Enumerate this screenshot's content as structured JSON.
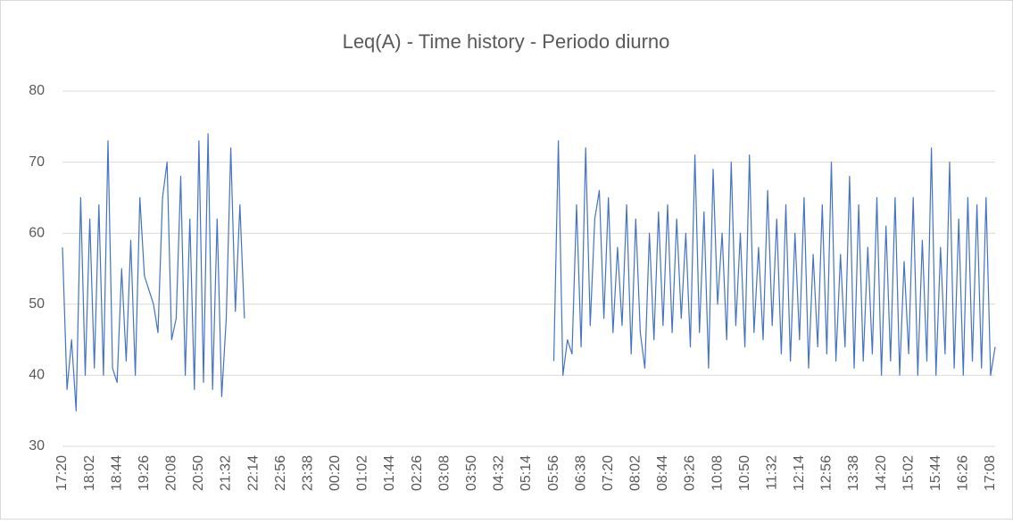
{
  "chart_data": {
    "type": "line",
    "title": "Leq(A) - Time history - Periodo diurno",
    "categories": [
      "17:20",
      null,
      null,
      null,
      null,
      null,
      "18:02",
      null,
      null,
      null,
      null,
      null,
      "18:44",
      null,
      null,
      null,
      null,
      null,
      "19:26",
      null,
      null,
      null,
      null,
      null,
      "20:08",
      null,
      null,
      null,
      null,
      null,
      "20:50",
      null,
      null,
      null,
      null,
      null,
      "21:32",
      null,
      null,
      null,
      null,
      null,
      "22:14",
      null,
      null,
      null,
      null,
      null,
      "22:56",
      null,
      null,
      null,
      null,
      null,
      "23:38",
      null,
      null,
      null,
      null,
      null,
      "00:20",
      null,
      null,
      null,
      null,
      null,
      "01:02",
      null,
      null,
      null,
      null,
      null,
      "01:44",
      null,
      null,
      null,
      null,
      null,
      "02:26",
      null,
      null,
      null,
      null,
      null,
      "03:08",
      null,
      null,
      null,
      null,
      null,
      "03:50",
      null,
      null,
      null,
      null,
      null,
      "04:32",
      null,
      null,
      null,
      null,
      null,
      "05:14",
      null,
      null,
      null,
      null,
      null,
      "05:56",
      null,
      null,
      null,
      null,
      null,
      "06:38",
      null,
      null,
      null,
      null,
      null,
      "07:20",
      null,
      null,
      null,
      null,
      null,
      "08:02",
      null,
      null,
      null,
      null,
      null,
      "08:44",
      null,
      null,
      null,
      null,
      null,
      "09:26",
      null,
      null,
      null,
      null,
      null,
      "10:08",
      null,
      null,
      null,
      null,
      null,
      "10:50",
      null,
      null,
      null,
      null,
      null,
      "11:32",
      null,
      null,
      null,
      null,
      null,
      "12:14",
      null,
      null,
      null,
      null,
      null,
      "12:56",
      null,
      null,
      null,
      null,
      null,
      "13:38",
      null,
      null,
      null,
      null,
      null,
      "14:20",
      null,
      null,
      null,
      null,
      null,
      "15:02",
      null,
      null,
      null,
      null,
      null,
      "15:44",
      null,
      null,
      null,
      null,
      null,
      "16:26",
      null,
      null,
      null,
      null,
      null,
      "17:08",
      null
    ],
    "series": [
      {
        "name": "Leq(A)",
        "color": "#4472c4",
        "values": [
          58,
          38,
          45,
          35,
          65,
          40,
          62,
          41,
          64,
          40,
          73,
          41,
          39,
          55,
          42,
          59,
          40,
          65,
          54,
          52,
          50,
          46,
          65,
          70,
          45,
          48,
          68,
          40,
          62,
          38,
          73,
          39,
          74,
          38,
          62,
          37,
          48,
          72,
          49,
          64,
          48,
          null,
          null,
          null,
          null,
          null,
          null,
          null,
          null,
          null,
          null,
          null,
          null,
          null,
          null,
          null,
          null,
          null,
          null,
          null,
          null,
          null,
          null,
          null,
          null,
          null,
          null,
          null,
          null,
          null,
          null,
          null,
          null,
          null,
          null,
          null,
          null,
          null,
          null,
          null,
          null,
          null,
          null,
          null,
          null,
          null,
          null,
          null,
          null,
          null,
          null,
          null,
          null,
          null,
          null,
          null,
          null,
          null,
          null,
          null,
          null,
          null,
          null,
          null,
          null,
          null,
          null,
          null,
          42,
          73,
          40,
          45,
          43,
          64,
          44,
          72,
          47,
          62,
          66,
          48,
          65,
          46,
          58,
          47,
          64,
          43,
          62,
          46,
          41,
          60,
          45,
          63,
          47,
          64,
          46,
          62,
          48,
          60,
          44,
          71,
          46,
          63,
          41,
          69,
          50,
          60,
          45,
          70,
          47,
          60,
          44,
          71,
          46,
          58,
          45,
          66,
          47,
          62,
          43,
          64,
          42,
          60,
          45,
          65,
          41,
          57,
          44,
          64,
          43,
          70,
          42,
          57,
          44,
          68,
          41,
          64,
          42,
          58,
          43,
          65,
          40,
          61,
          42,
          65,
          40,
          56,
          43,
          65,
          40,
          59,
          42,
          72,
          40,
          58,
          43,
          70,
          41,
          62,
          40,
          65,
          42,
          64,
          41,
          65,
          40,
          44
        ]
      }
    ],
    "ylim": [
      30,
      80
    ],
    "yticks": [
      30,
      40,
      50,
      60,
      70,
      80
    ],
    "grid": true
  }
}
